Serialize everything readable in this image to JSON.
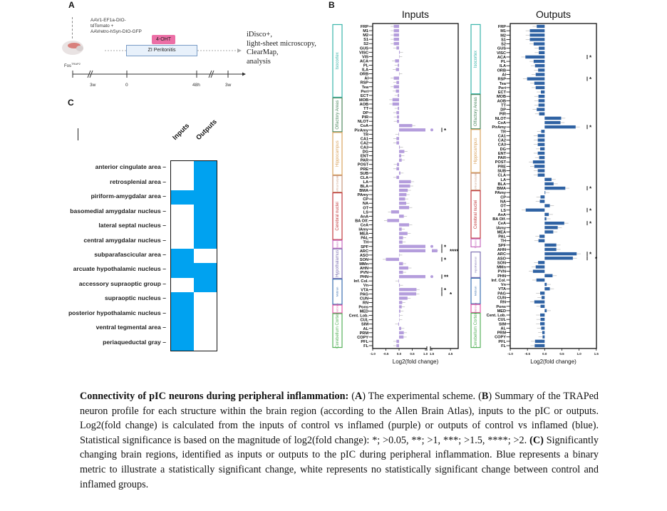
{
  "panel_a": {
    "label": "A",
    "injection_lines": [
      "AAV1-EF1a-DIO-",
      "tdTomato +",
      "AAVretro-hSyn-DIO-GFP"
    ],
    "mouse_line": "Fos",
    "mouse_line_sup": "TRAP2",
    "drug_badge": "4-OHT",
    "treatment_box": "ZI Peritonitis",
    "readout_lines": [
      "iDisco+,",
      "light-sheet microscopy,",
      "ClearMap,",
      "analysis"
    ],
    "timeline_labels": [
      "3w",
      "0",
      "48h",
      "3w"
    ],
    "colors": {
      "drug_badge": "#ec6fa6",
      "treatment_box_fill": "#e8f1fb",
      "treatment_box_border": "#7a9cc6"
    }
  },
  "panel_b": {
    "label": "B"
  },
  "panel_c": {
    "label": "C"
  },
  "chart_data": [
    {
      "type": "bar",
      "orientation": "horizontal",
      "title": "Inputs",
      "xlabel": "Log2(fold change)",
      "x_ticks": [
        "-1.0",
        "-0.5",
        "0.0",
        "0.5",
        "1.0",
        "1.5",
        "4.5"
      ],
      "x_axis_break": [
        1.0,
        1.5
      ],
      "xlim": [
        -1.0,
        4.5
      ],
      "color": "#b49ddc",
      "categories": [
        "FRP",
        "M1",
        "M2",
        "S1",
        "S2",
        "GUS",
        "VISC",
        "VIS",
        "ACA",
        "PL",
        "ILA",
        "ORB",
        "AI",
        "RSP",
        "Tea",
        "Peri",
        "ECT",
        "MOB",
        "AOB",
        "TT",
        "DP",
        "PIR",
        "NLOT",
        "CoA",
        "PirAmy",
        "TR",
        "CA1",
        "CA2",
        "CA3",
        "DG",
        "ENT",
        "PAR",
        "POST",
        "PRE",
        "SUB",
        "CLA",
        "LA",
        "BLA",
        "BMA",
        "PAmy",
        "CP",
        "NA",
        "OT",
        "LS",
        "AnA",
        "BA Olf.",
        "CeA",
        "IAmy",
        "MEA",
        "PAL",
        "TH",
        "SPF",
        "ARC",
        "ASO",
        "SON",
        "MMn",
        "AHN",
        "PVN",
        "PHN",
        "Inf. Col.",
        "Vn",
        "VTA",
        "PAG",
        "CUN",
        "RN",
        "Pons",
        "MED",
        "Cent. Lob.",
        "CUL",
        "SIM",
        "AL",
        "PRM",
        "COPY",
        "PFL",
        "FL"
      ],
      "values": [
        -0.2,
        -0.2,
        -0.2,
        -0.2,
        -0.2,
        -0.1,
        0.03,
        0,
        -0.15,
        -0.05,
        -0.12,
        0,
        -0.2,
        -0.1,
        -0.2,
        -0.12,
        -0.05,
        -0.25,
        -0.25,
        -0.05,
        -0.1,
        -0.08,
        -0.08,
        0.5,
        1.3,
        -0.02,
        -0.1,
        -0.1,
        0.03,
        0.2,
        0.08,
        0.1,
        -0.08,
        -0.1,
        0.05,
        -0.1,
        0.45,
        0.42,
        0.33,
        0.28,
        0.23,
        0.27,
        0.38,
        -0.3,
        0.18,
        -0.45,
        0.38,
        0.1,
        0.32,
        0.15,
        0.13,
        1.3,
        2.4,
        0,
        -0.5,
        0.15,
        0.35,
        0.15,
        1.4,
        -0.02,
        0.03,
        0.66,
        0.65,
        0.32,
        0.12,
        0.1,
        0.05,
        0.02,
        0,
        -0.03,
        0.08,
        0.18,
        0.17,
        -0.1,
        -0.1
      ],
      "significance": {
        "PirAmy": "*",
        "SPF": "*",
        "ARC": "****",
        "SON": "*",
        "PHN": "**",
        "VTA": "*",
        "PAG": "*"
      }
    },
    {
      "type": "bar",
      "orientation": "horizontal",
      "title": "Outputs",
      "xlabel": "Log2(fold change)",
      "x_ticks": [
        "-1.0",
        "-0.5",
        "0.0",
        "0.5",
        "1.0",
        "1.5"
      ],
      "xlim": [
        -1.0,
        1.5
      ],
      "color": "#2f62a3",
      "categories": [
        "FRP",
        "M1",
        "M2",
        "S1",
        "S2",
        "GUS",
        "VISC",
        "ACA",
        "PL",
        "ILA",
        "ORB",
        "AI",
        "RSP",
        "Tea",
        "Peri",
        "ECT",
        "MOB",
        "AOB",
        "TT",
        "DP",
        "PIR",
        "NLOT",
        "CoA",
        "PirAmy",
        "TR",
        "CA1",
        "CA2",
        "CA3",
        "DG",
        "ENT",
        "PAR",
        "POST",
        "PRE",
        "SUB",
        "CLA",
        "LA",
        "BLA",
        "BMA",
        "PAmy",
        "CP",
        "NA",
        "OT",
        "LS",
        "AnA",
        "BA Olf.",
        "CeA",
        "IAmy",
        "MEA",
        "PAL",
        "TH",
        "SPF",
        "AHN",
        "ARC",
        "ASO",
        "SON",
        "MMn",
        "PVN",
        "PHN",
        "Inf. Col.",
        "Vn",
        "VTA",
        "PAG",
        "CUN",
        "RN",
        "Pons",
        "MED",
        "Cent. Lob.",
        "CUL",
        "SIM",
        "AL",
        "PRM",
        "COPY",
        "PFL",
        "FL"
      ],
      "values": [
        -0.23,
        -0.43,
        -0.43,
        -0.43,
        -0.32,
        -0.17,
        -0.17,
        -0.56,
        -0.32,
        -0.28,
        -0.19,
        -0.26,
        -0.51,
        -0.3,
        -0.26,
        -0.11,
        -0.18,
        -0.18,
        -0.18,
        -0.23,
        -0.16,
        0.48,
        0.46,
        0.9,
        -0.1,
        -0.2,
        -0.2,
        -0.2,
        -0.13,
        -0.2,
        -0.16,
        -0.34,
        -0.3,
        -0.2,
        -0.2,
        0.2,
        0.26,
        0.6,
        0.02,
        -0.12,
        -0.14,
        0.15,
        -0.55,
        0.12,
        0.05,
        0.57,
        0.38,
        0.25,
        -0.15,
        -0.18,
        0.34,
        0.34,
        0.93,
        0.82,
        -0.19,
        -0.26,
        -0.34,
        0.23,
        -0.24,
        0.06,
        0.15,
        -0.13,
        -0.09,
        -0.3,
        -0.12,
        0.06,
        -0.13,
        -0.12,
        -0.13,
        -0.1,
        -0.07,
        -0.06,
        -0.28,
        -0.29
      ],
      "significance": {
        "ACA": "*",
        "RSP": "*",
        "PirAmy": "*",
        "BMA": "*",
        "LS": "*",
        "CeA": "*",
        "ARC": "*",
        "ASO": "*"
      }
    },
    {
      "type": "heatmap",
      "columns": [
        "Inputs",
        "Outputs"
      ],
      "rows": [
        "anterior cingulate area",
        "retrosplenial area",
        "piriform-amygdalar area",
        "basomedial amygdalar nucleus",
        "lateral septal nucleus",
        "central amygdalar nucleus",
        "subparafascicular area",
        "arcuate hypothalamic nucleus",
        "accessory supraoptic group",
        "supraoptic nucleus",
        "posterior hypothalamic nucleus",
        "ventral tegmental area",
        "periaqueductal gray"
      ],
      "values": [
        [
          0,
          1
        ],
        [
          0,
          1
        ],
        [
          1,
          1
        ],
        [
          0,
          1
        ],
        [
          0,
          1
        ],
        [
          0,
          1
        ],
        [
          1,
          0
        ],
        [
          1,
          1
        ],
        [
          0,
          1
        ],
        [
          1,
          0
        ],
        [
          1,
          0
        ],
        [
          1,
          0
        ],
        [
          1,
          0
        ]
      ],
      "colors": {
        "1": "#00a2f0",
        "0": "#ffffff"
      }
    }
  ],
  "region_groups": [
    {
      "name": "Isocortex",
      "first": "FRP",
      "last": "ECT",
      "color": "#3ab5aa"
    },
    {
      "name": "Olfactory Areas",
      "first": "MOB",
      "last": "PirAmy",
      "color": "#4f8a62"
    },
    {
      "name": "Hippocampus",
      "first": "TR",
      "last": "SUB",
      "color": "#d9a35e"
    },
    {
      "name": "Cortical Subplate",
      "first": "CLA",
      "last": "BMA",
      "color": "#c8957a"
    },
    {
      "name": "Cerebral nuclei",
      "first": "PAmy",
      "last": "PAL",
      "color": "#c23a3d"
    },
    {
      "name": "Thalamus",
      "first": "TH",
      "last": "SPF",
      "color": "#c76bbf"
    },
    {
      "name": "Hypothalamus",
      "first": "ARC",
      "last": "PHN",
      "color": "#7f72b3"
    },
    {
      "name": "Midbrain",
      "first": "Inf. Col.",
      "last": "RN",
      "color": "#3b6fb0"
    },
    {
      "name": "Hind brain",
      "first": "Pons",
      "last": "MED",
      "color": "#e056a6"
    },
    {
      "name": "Cerebellum Cortex",
      "first": "Cent. Lob.",
      "last": "FL",
      "color": "#55b159"
    }
  ],
  "caption": {
    "segments": [
      {
        "text": "Connectivity of pIC neurons during peripheral inflammation:",
        "bold": true
      },
      {
        "text": " (",
        "bold": false
      },
      {
        "text": "A",
        "bold": true
      },
      {
        "text": ") The experimental scheme. (",
        "bold": false
      },
      {
        "text": "B",
        "bold": true
      },
      {
        "text": ") Summary of the TRAPed neuron profile for each structure within the brain region (according to the Allen Brain Atlas), inputs to the pIC or outputs. Log2(fold change) is calculated from the inputs of control vs inflamed (purple) or outputs of control vs inflamed (blue). Statistical significance is based on the magnitude of log2(fold change): *; >0.05, **; >1, ***; >1.5, ****; >2. ",
        "bold": false
      },
      {
        "text": "(C)",
        "bold": true
      },
      {
        "text": " Significantly changing brain regions, identified as inputs or outputs to the pIC during peripheral inflammation. Blue represents a binary metric to illustrate a statistically significant change, white represents no statistically significant change between control and inflamed groups.",
        "bold": false
      }
    ]
  }
}
